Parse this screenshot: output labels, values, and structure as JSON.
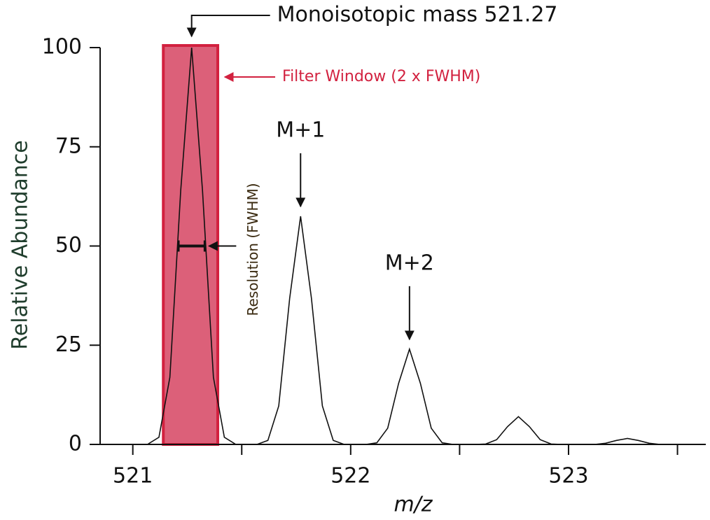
{
  "chart_data": {
    "type": "line",
    "x_label": "m/z",
    "y_label": "Relative Abundance",
    "x": [
      521.07,
      521.12,
      521.17,
      521.22,
      521.27,
      521.32,
      521.37,
      521.42,
      521.47,
      521.52,
      521.57,
      521.62,
      521.67,
      521.72,
      521.77,
      521.82,
      521.87,
      521.92,
      521.97,
      522.02,
      522.07,
      522.12,
      522.17,
      522.22,
      522.27,
      522.32,
      522.37,
      522.42,
      522.47,
      522.52,
      522.57,
      522.62,
      522.67,
      522.72,
      522.77,
      522.82,
      522.87,
      522.92,
      522.97,
      523.02,
      523.07,
      523.12,
      523.17,
      523.22,
      523.27,
      523.32,
      523.37,
      523.42,
      523.47
    ],
    "values": [
      0.1,
      1.8,
      16.9,
      64,
      100,
      64,
      16.9,
      1.8,
      0.1,
      null,
      0,
      1,
      9.7,
      36.8,
      57.5,
      36.8,
      9.7,
      1,
      0,
      null,
      0,
      0.4,
      4.1,
      15.4,
      24,
      15.4,
      4.1,
      0.4,
      0,
      null,
      0,
      0.1,
      1.2,
      4.5,
      7,
      4.5,
      1.2,
      0.1,
      0,
      null,
      0,
      0,
      0.3,
      1,
      1.5,
      1,
      0.3,
      0,
      0
    ],
    "color": "#111111",
    "xlim": [
      520.85,
      523.63
    ],
    "ylim": [
      0,
      100
    ],
    "xticks": [
      521,
      522,
      523
    ],
    "minor_xticks": [
      521.5,
      522.5,
      523.5
    ],
    "yticks": [
      0,
      25,
      50,
      75,
      100
    ],
    "filter_window": {
      "label": "Filter Window (2 x FWHM)",
      "range": [
        521.14,
        521.39
      ],
      "color": "#d2213f",
      "fill": "#dc6079"
    },
    "fwhm": {
      "label": "Resolution (FWHM)",
      "range": [
        521.21,
        521.33
      ],
      "y": 50
    },
    "annotations": [
      {
        "text": "Monoisotopic mass 521.27",
        "x": 521.27,
        "y": 100,
        "style": "elbow"
      },
      {
        "text": "M+1",
        "x": 521.77,
        "y": 57.5,
        "style": "down"
      },
      {
        "text": "M+2",
        "x": 522.27,
        "y": 24,
        "style": "down"
      }
    ]
  }
}
